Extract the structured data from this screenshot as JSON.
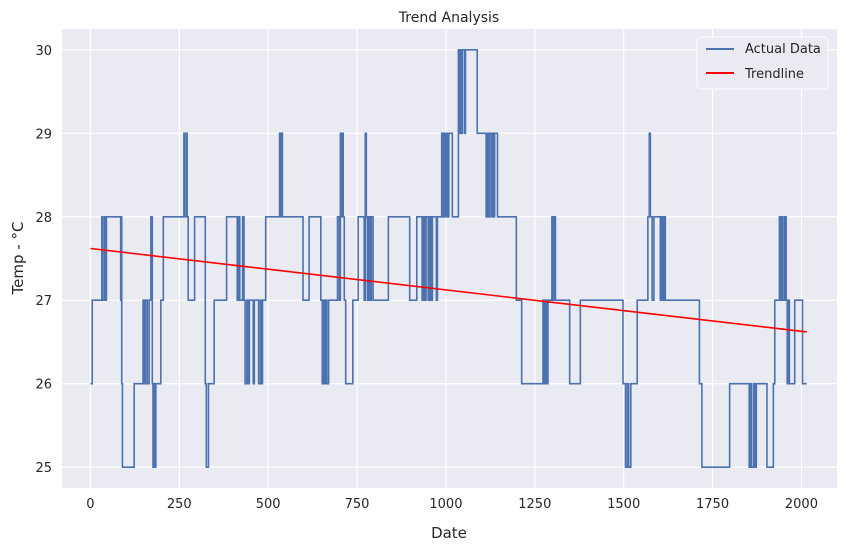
{
  "chart_data": {
    "type": "line",
    "title": "Trend Analysis",
    "xlabel": "Date",
    "ylabel": "Temp - °C",
    "xlim": [
      -80,
      2100
    ],
    "ylim": [
      24.75,
      30.25
    ],
    "xticks": [
      0,
      250,
      500,
      750,
      1000,
      1250,
      1500,
      1750,
      2000
    ],
    "yticks": [
      25,
      26,
      27,
      28,
      29,
      30
    ],
    "grid": true,
    "legend_position": "top-right",
    "colors": {
      "background": "#eaeaf2",
      "grid": "#ffffff",
      "actual": "#4c72b0",
      "trend": "#ff0000"
    },
    "series": [
      {
        "name": "Actual Data",
        "style": "step",
        "points": [
          [
            0,
            26
          ],
          [
            5,
            27
          ],
          [
            30,
            27
          ],
          [
            32,
            28
          ],
          [
            35,
            27
          ],
          [
            40,
            28
          ],
          [
            43,
            27
          ],
          [
            45,
            28
          ],
          [
            85,
            27
          ],
          [
            87,
            28
          ],
          [
            88,
            26
          ],
          [
            90,
            25
          ],
          [
            120,
            25
          ],
          [
            123,
            26
          ],
          [
            145,
            26
          ],
          [
            148,
            27
          ],
          [
            152,
            26
          ],
          [
            155,
            27
          ],
          [
            160,
            26
          ],
          [
            165,
            27
          ],
          [
            170,
            28
          ],
          [
            174,
            26
          ],
          [
            176,
            25
          ],
          [
            179,
            26
          ],
          [
            181,
            25
          ],
          [
            184,
            26
          ],
          [
            195,
            26
          ],
          [
            198,
            27
          ],
          [
            202,
            27
          ],
          [
            205,
            28
          ],
          [
            260,
            28
          ],
          [
            263,
            29
          ],
          [
            265,
            28
          ],
          [
            270,
            29
          ],
          [
            272,
            28
          ],
          [
            275,
            27
          ],
          [
            290,
            27
          ],
          [
            293,
            28
          ],
          [
            320,
            28
          ],
          [
            323,
            26
          ],
          [
            326,
            25
          ],
          [
            332,
            26
          ],
          [
            345,
            26
          ],
          [
            348,
            27
          ],
          [
            380,
            27
          ],
          [
            383,
            28
          ],
          [
            410,
            28
          ],
          [
            413,
            27
          ],
          [
            416,
            28
          ],
          [
            420,
            27
          ],
          [
            425,
            27
          ],
          [
            428,
            28
          ],
          [
            432,
            27
          ],
          [
            435,
            26
          ],
          [
            440,
            27
          ],
          [
            443,
            26
          ],
          [
            447,
            27
          ],
          [
            455,
            27
          ],
          [
            458,
            26
          ],
          [
            461,
            27
          ],
          [
            470,
            27
          ],
          [
            473,
            26
          ],
          [
            478,
            27
          ],
          [
            481,
            26
          ],
          [
            484,
            27
          ],
          [
            490,
            27
          ],
          [
            493,
            28
          ],
          [
            530,
            28
          ],
          [
            532,
            29
          ],
          [
            535,
            28
          ],
          [
            538,
            29
          ],
          [
            540,
            28
          ],
          [
            595,
            28
          ],
          [
            598,
            27
          ],
          [
            612,
            27
          ],
          [
            615,
            28
          ],
          [
            645,
            28
          ],
          [
            648,
            27
          ],
          [
            652,
            26
          ],
          [
            655,
            27
          ],
          [
            658,
            26
          ],
          [
            661,
            27
          ],
          [
            665,
            26
          ],
          [
            670,
            27
          ],
          [
            692,
            27
          ],
          [
            695,
            28
          ],
          [
            700,
            27
          ],
          [
            703,
            29
          ],
          [
            706,
            28
          ],
          [
            708,
            29
          ],
          [
            711,
            28
          ],
          [
            714,
            27
          ],
          [
            718,
            26
          ],
          [
            735,
            26
          ],
          [
            738,
            27
          ],
          [
            750,
            27
          ],
          [
            753,
            28
          ],
          [
            768,
            28
          ],
          [
            770,
            27
          ],
          [
            773,
            29
          ],
          [
            776,
            28
          ],
          [
            779,
            27
          ],
          [
            782,
            28
          ],
          [
            786,
            27
          ],
          [
            790,
            28
          ],
          [
            795,
            27
          ],
          [
            835,
            27
          ],
          [
            838,
            28
          ],
          [
            895,
            28
          ],
          [
            898,
            27
          ],
          [
            915,
            27
          ],
          [
            918,
            28
          ],
          [
            930,
            28
          ],
          [
            933,
            27
          ],
          [
            937,
            28
          ],
          [
            940,
            27
          ],
          [
            944,
            28
          ],
          [
            950,
            27
          ],
          [
            954,
            28
          ],
          [
            958,
            27
          ],
          [
            962,
            28
          ],
          [
            970,
            28
          ],
          [
            973,
            27
          ],
          [
            976,
            28
          ],
          [
            985,
            28
          ],
          [
            988,
            29
          ],
          [
            992,
            28
          ],
          [
            995,
            29
          ],
          [
            999,
            28
          ],
          [
            1002,
            29
          ],
          [
            1005,
            28
          ],
          [
            1008,
            29
          ],
          [
            1015,
            29
          ],
          [
            1018,
            28
          ],
          [
            1032,
            28
          ],
          [
            1035,
            30
          ],
          [
            1038,
            29
          ],
          [
            1041,
            30
          ],
          [
            1044,
            29
          ],
          [
            1047,
            30
          ],
          [
            1050,
            30
          ],
          [
            1053,
            29
          ],
          [
            1055,
            30
          ],
          [
            1085,
            30
          ],
          [
            1088,
            29
          ],
          [
            1110,
            29
          ],
          [
            1113,
            28
          ],
          [
            1116,
            29
          ],
          [
            1120,
            28
          ],
          [
            1123,
            29
          ],
          [
            1128,
            28
          ],
          [
            1131,
            29
          ],
          [
            1134,
            28
          ],
          [
            1137,
            29
          ],
          [
            1142,
            29
          ],
          [
            1145,
            28
          ],
          [
            1195,
            28
          ],
          [
            1198,
            27
          ],
          [
            1210,
            27
          ],
          [
            1213,
            26
          ],
          [
            1270,
            26
          ],
          [
            1273,
            27
          ],
          [
            1277,
            26
          ],
          [
            1280,
            27
          ],
          [
            1284,
            26
          ],
          [
            1287,
            27
          ],
          [
            1295,
            27
          ],
          [
            1298,
            28
          ],
          [
            1302,
            27
          ],
          [
            1305,
            28
          ],
          [
            1308,
            27
          ],
          [
            1345,
            27
          ],
          [
            1348,
            26
          ],
          [
            1375,
            26
          ],
          [
            1378,
            27
          ],
          [
            1495,
            27
          ],
          [
            1498,
            26
          ],
          [
            1505,
            25
          ],
          [
            1510,
            26
          ],
          [
            1514,
            25
          ],
          [
            1520,
            26
          ],
          [
            1535,
            26
          ],
          [
            1538,
            27
          ],
          [
            1565,
            27
          ],
          [
            1568,
            28
          ],
          [
            1572,
            29
          ],
          [
            1575,
            28
          ],
          [
            1580,
            27
          ],
          [
            1585,
            28
          ],
          [
            1600,
            28
          ],
          [
            1603,
            27
          ],
          [
            1606,
            28
          ],
          [
            1610,
            27
          ],
          [
            1613,
            28
          ],
          [
            1617,
            27
          ],
          [
            1710,
            27
          ],
          [
            1713,
            26
          ],
          [
            1720,
            25
          ],
          [
            1795,
            25
          ],
          [
            1798,
            26
          ],
          [
            1850,
            26
          ],
          [
            1853,
            25
          ],
          [
            1856,
            26
          ],
          [
            1860,
            25
          ],
          [
            1866,
            26
          ],
          [
            1870,
            25
          ],
          [
            1873,
            26
          ],
          [
            1900,
            26
          ],
          [
            1903,
            25
          ],
          [
            1918,
            25
          ],
          [
            1921,
            26
          ],
          [
            1925,
            27
          ],
          [
            1935,
            27
          ],
          [
            1938,
            28
          ],
          [
            1941,
            27
          ],
          [
            1944,
            28
          ],
          [
            1948,
            27
          ],
          [
            1953,
            28
          ],
          [
            1957,
            27
          ],
          [
            1960,
            26
          ],
          [
            1963,
            27
          ],
          [
            1966,
            26
          ],
          [
            1978,
            26
          ],
          [
            1981,
            27
          ],
          [
            2000,
            27
          ],
          [
            2003,
            26
          ],
          [
            2015,
            26
          ]
        ]
      },
      {
        "name": "Trendline",
        "style": "line",
        "points": [
          [
            0,
            27.62
          ],
          [
            2015,
            26.62
          ]
        ]
      }
    ]
  }
}
